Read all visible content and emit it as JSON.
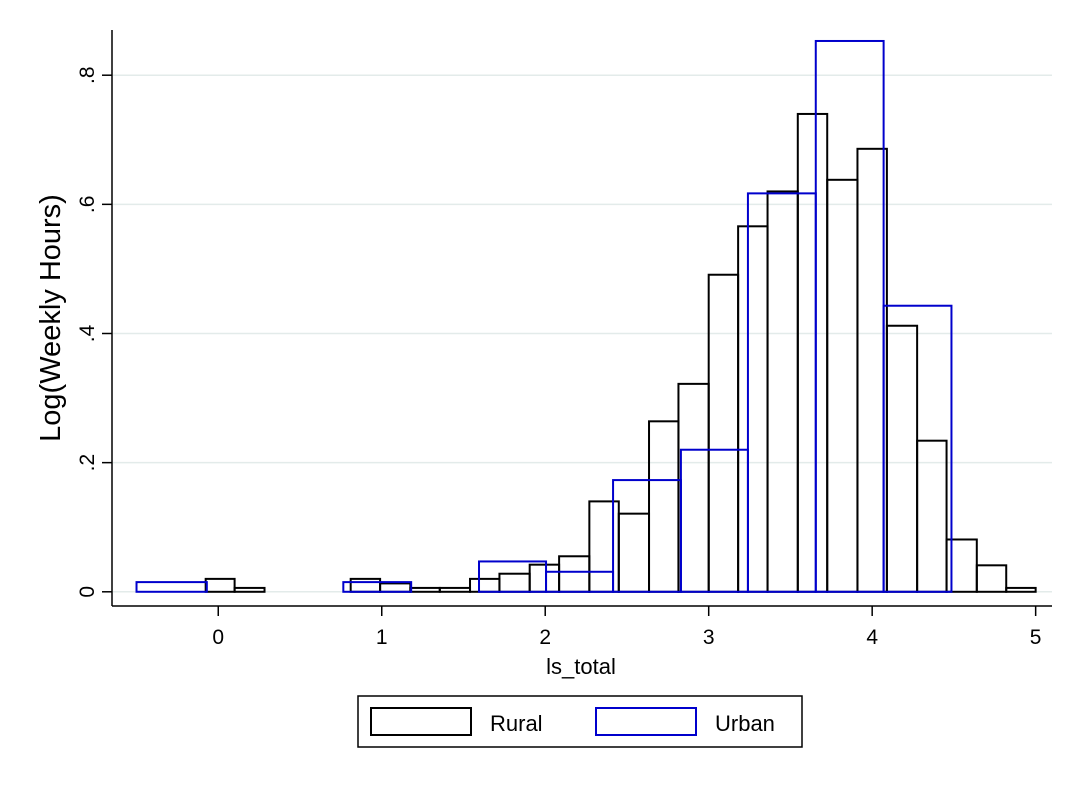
{
  "chart_data": {
    "type": "bar",
    "xlabel": "ls_total",
    "ylabel": "Log(Weekly Hours)",
    "xlim": [
      -0.65,
      5.1
    ],
    "ylim": [
      -0.022,
      0.87
    ],
    "x_ticks": [
      0,
      1,
      2,
      3,
      4,
      5
    ],
    "x_tick_labels": [
      "0",
      "1",
      "2",
      "3",
      "4",
      "5"
    ],
    "y_ticks": [
      0,
      0.2,
      0.4,
      0.6,
      0.8
    ],
    "y_tick_labels": [
      "0",
      ".2",
      ".4",
      ".6",
      ".8"
    ],
    "grid": true,
    "legend_position": "bottom",
    "series": [
      {
        "name": "Rural",
        "color": "#000000",
        "bins": [
          {
            "x0": -0.077,
            "x1": 0.1,
            "y": 0.02
          },
          {
            "x0": 0.1,
            "x1": 0.283,
            "y": 0.006
          },
          {
            "x0": 0.81,
            "x1": 0.99,
            "y": 0.02
          },
          {
            "x0": 0.99,
            "x1": 1.175,
            "y": 0.013
          },
          {
            "x0": 1.175,
            "x1": 1.355,
            "y": 0.006
          },
          {
            "x0": 1.355,
            "x1": 1.54,
            "y": 0.006
          },
          {
            "x0": 1.54,
            "x1": 1.72,
            "y": 0.02
          },
          {
            "x0": 1.72,
            "x1": 1.905,
            "y": 0.028
          },
          {
            "x0": 1.905,
            "x1": 2.085,
            "y": 0.042
          },
          {
            "x0": 2.085,
            "x1": 2.27,
            "y": 0.055
          },
          {
            "x0": 2.27,
            "x1": 2.45,
            "y": 0.14
          },
          {
            "x0": 2.45,
            "x1": 2.635,
            "y": 0.121
          },
          {
            "x0": 2.635,
            "x1": 2.815,
            "y": 0.264
          },
          {
            "x0": 2.815,
            "x1": 3.0,
            "y": 0.322
          },
          {
            "x0": 3.0,
            "x1": 3.18,
            "y": 0.491
          },
          {
            "x0": 3.18,
            "x1": 3.36,
            "y": 0.566
          },
          {
            "x0": 3.36,
            "x1": 3.545,
            "y": 0.62
          },
          {
            "x0": 3.545,
            "x1": 3.725,
            "y": 0.74
          },
          {
            "x0": 3.725,
            "x1": 3.91,
            "y": 0.638
          },
          {
            "x0": 3.91,
            "x1": 4.09,
            "y": 0.686
          },
          {
            "x0": 4.09,
            "x1": 4.275,
            "y": 0.412
          },
          {
            "x0": 4.275,
            "x1": 4.455,
            "y": 0.234
          },
          {
            "x0": 4.455,
            "x1": 4.64,
            "y": 0.081
          },
          {
            "x0": 4.64,
            "x1": 4.82,
            "y": 0.041
          },
          {
            "x0": 4.82,
            "x1": 5.0,
            "y": 0.006
          }
        ]
      },
      {
        "name": "Urban",
        "color": "#0000cc",
        "bins": [
          {
            "x0": -0.5,
            "x1": -0.07,
            "y": 0.015
          },
          {
            "x0": 0.765,
            "x1": 1.18,
            "y": 0.015
          },
          {
            "x0": 1.595,
            "x1": 2.005,
            "y": 0.047
          },
          {
            "x0": 2.005,
            "x1": 2.415,
            "y": 0.031
          },
          {
            "x0": 2.415,
            "x1": 2.83,
            "y": 0.173
          },
          {
            "x0": 2.83,
            "x1": 3.24,
            "y": 0.22
          },
          {
            "x0": 3.24,
            "x1": 3.655,
            "y": 0.617
          },
          {
            "x0": 3.655,
            "x1": 4.07,
            "y": 0.853
          },
          {
            "x0": 4.07,
            "x1": 4.485,
            "y": 0.443
          }
        ]
      }
    ]
  }
}
